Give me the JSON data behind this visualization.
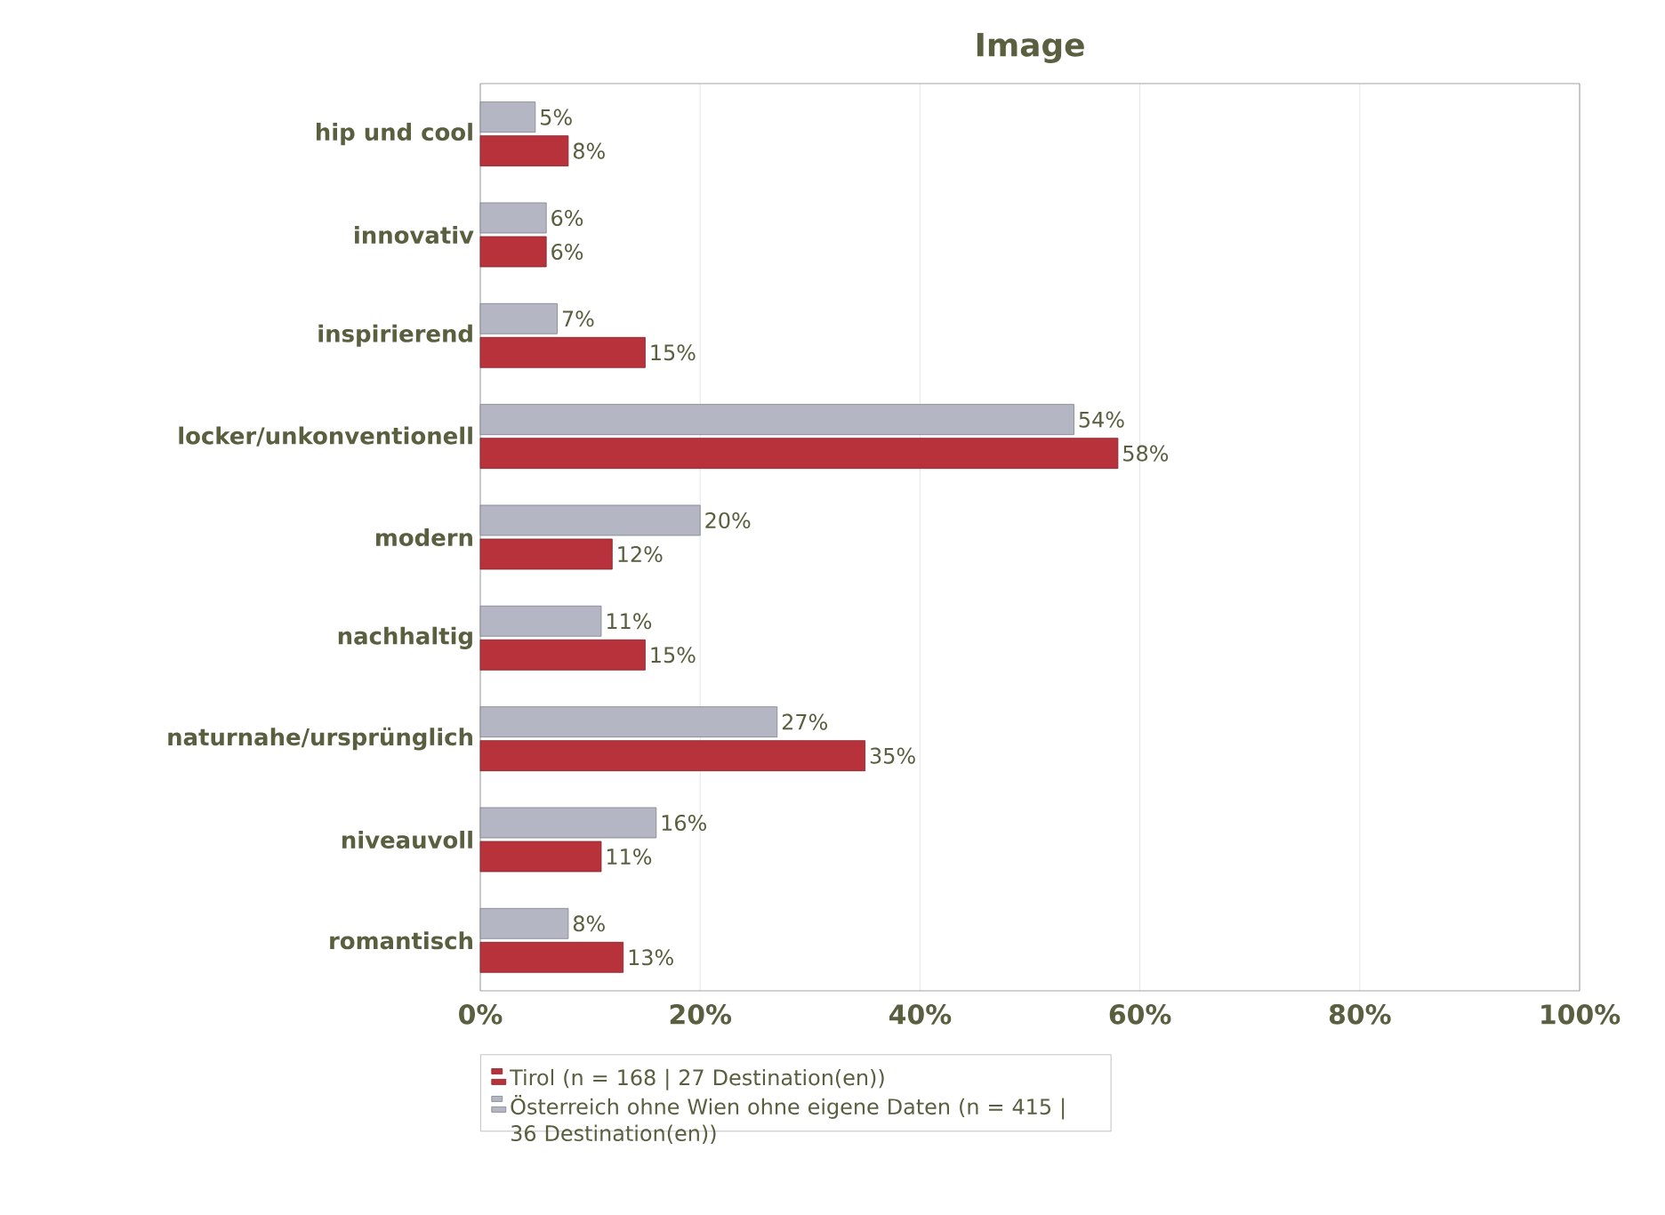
{
  "chart_data": {
    "type": "bar",
    "orientation": "horizontal",
    "title": "Image",
    "categories": [
      "hip und cool",
      "innovativ",
      "inspirierend",
      "locker/unkonventionell",
      "modern",
      "nachhaltig",
      "naturnahe/ursprünglich",
      "niveauvoll",
      "romantisch"
    ],
    "series": [
      {
        "name": "Tirol (n = 168 | 27 Destination(en))",
        "color": "#b8323c",
        "values": [
          8,
          6,
          15,
          58,
          12,
          15,
          35,
          11,
          13
        ],
        "value_labels": [
          "8%",
          "6%",
          "15%",
          "58%",
          "12%",
          "15%",
          "35%",
          "11%",
          "13%"
        ]
      },
      {
        "name": "Österreich ohne Wien ohne eigene Daten (n = 415 | 36 Destination(en))",
        "color": "#b4b7c3",
        "values": [
          5,
          6,
          7,
          54,
          20,
          11,
          27,
          16,
          8
        ],
        "value_labels": [
          "5%",
          "6%",
          "7%",
          "54%",
          "20%",
          "11%",
          "27%",
          "16%",
          "8%"
        ]
      }
    ],
    "xlim": [
      0,
      100
    ],
    "xticks": [
      {
        "value": 0,
        "label": "0%"
      },
      {
        "value": 20,
        "label": "20%"
      },
      {
        "value": 40,
        "label": "40%"
      },
      {
        "value": 60,
        "label": "60%"
      },
      {
        "value": 80,
        "label": "80%"
      },
      {
        "value": 100,
        "label": "100%"
      }
    ],
    "grid": "x",
    "legend": "bottom"
  }
}
